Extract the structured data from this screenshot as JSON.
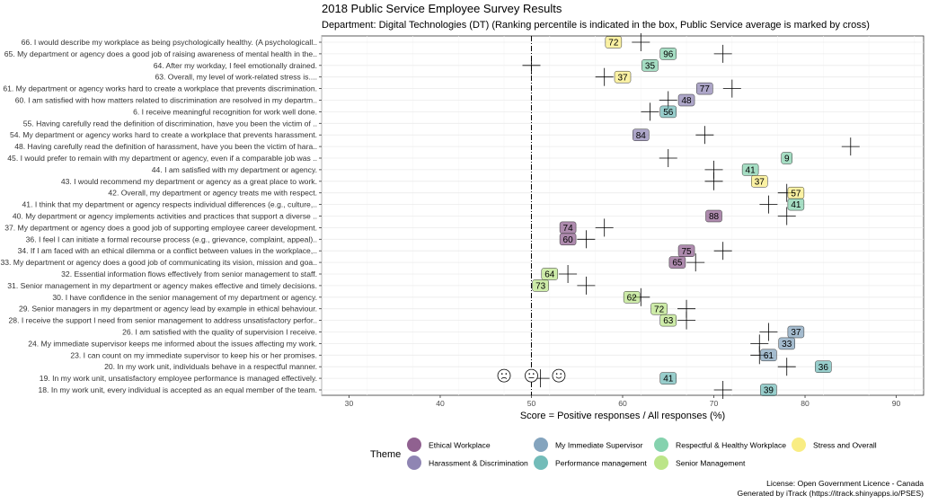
{
  "chart_data": {
    "type": "scatter",
    "title": "2018 Public Service Employee Survey Results",
    "subtitle": "Department: Digital Technologies (DT) (Ranking percentile is indicated in the box, Public Service average is marked by cross)",
    "xlabel": "Score = Positive responses / All responses (%)",
    "xlim": [
      27,
      93
    ],
    "xticks": [
      30,
      40,
      50,
      60,
      70,
      80,
      90
    ],
    "reference_line_x": 50,
    "grid": true,
    "legend_title": "Theme",
    "legend_position": "bottom",
    "themes": [
      {
        "name": "Ethical Workplace",
        "color": "#6b2c6b"
      },
      {
        "name": "Harassment & Discrimination",
        "color": "#6a5c9a"
      },
      {
        "name": "My Immediate Supervisor",
        "color": "#5b85a8"
      },
      {
        "name": "Performance management",
        "color": "#44a6a2"
      },
      {
        "name": "Respectful & Healthy Workplace",
        "color": "#5cc393"
      },
      {
        "name": "Senior Management",
        "color": "#a6dc62"
      },
      {
        "name": "Stress and Overall",
        "color": "#f7e75a"
      }
    ],
    "questions": [
      {
        "label": "66. I would describe my workplace as being psychologically healthy.   (A psychologicall..",
        "score": 59,
        "rank": "72",
        "ps_avg": 62,
        "theme": 6
      },
      {
        "label": "65. My department or agency does a good job of raising awareness of mental health in the..",
        "score": 65,
        "rank": "96",
        "ps_avg": 71,
        "theme": 4
      },
      {
        "label": "64. After my workday, I feel emotionally drained.",
        "score": 63,
        "rank": "35",
        "ps_avg": 50,
        "theme": 4
      },
      {
        "label": "63. Overall, my level of work-related stress is....",
        "score": 60,
        "rank": "37",
        "ps_avg": 58,
        "theme": 6
      },
      {
        "label": "61. My department or agency works hard to create a workplace that prevents discrimination.",
        "score": 69,
        "rank": "77",
        "ps_avg": 72,
        "theme": 1
      },
      {
        "label": "60. I am satisfied with how matters related to discrimination are resolved in my departm..",
        "score": 67,
        "rank": "48",
        "ps_avg": 65,
        "theme": 1
      },
      {
        "label": "6. I receive meaningful recognition for work well done.",
        "score": 65,
        "rank": "56",
        "ps_avg": 63,
        "theme": 3
      },
      {
        "label": "55. Having carefully read the definition of discrimination, have you been the victim of ..",
        "score": null,
        "rank": "",
        "ps_avg": null,
        "theme": 1
      },
      {
        "label": "54. My department or agency works hard to create a workplace that prevents harassment.",
        "score": 62,
        "rank": "84",
        "ps_avg": 69,
        "theme": 1
      },
      {
        "label": "48. Having carefully read the definition of harassment, have you been the victim of hara..",
        "score": null,
        "rank": "",
        "ps_avg": 85,
        "theme": 1
      },
      {
        "label": "45. I would prefer to remain with my department or agency, even if a comparable job was ..",
        "score": 78,
        "rank": "9",
        "ps_avg": 65,
        "theme": 4
      },
      {
        "label": "44. I am satisfied with my department or agency.",
        "score": 74,
        "rank": "41",
        "ps_avg": 70,
        "theme": 4
      },
      {
        "label": "43. I would recommend my department or agency as a great place to work.",
        "score": 75,
        "rank": "37",
        "ps_avg": 70,
        "theme": 6
      },
      {
        "label": "42. Overall, my department or agency treats me with respect.",
        "score": 79,
        "rank": "57",
        "ps_avg": 78,
        "theme": 6
      },
      {
        "label": "41. I think that my department or agency respects individual differences (e.g., culture,..",
        "score": 79,
        "rank": "41",
        "ps_avg": 76,
        "theme": 4
      },
      {
        "label": "40. My department or agency implements activities and practices  that support a diverse ..",
        "score": 70,
        "rank": "88",
        "ps_avg": 78,
        "theme": 0
      },
      {
        "label": "37. My department or agency does a good job of supporting employee career development.",
        "score": 54,
        "rank": "74",
        "ps_avg": 58,
        "theme": 0
      },
      {
        "label": "36. I feel I can initiate a formal recourse process (e.g., grievance, complaint, appeal)..",
        "score": 54,
        "rank": "60",
        "ps_avg": 56,
        "theme": 0
      },
      {
        "label": "34. If I am faced with an ethical dilemma or a conflict between values in the workplace,..",
        "score": 67,
        "rank": "75",
        "ps_avg": 71,
        "theme": 0
      },
      {
        "label": "33. My department or agency does a good job of communicating its vision, mission and goa..",
        "score": 66,
        "rank": "65",
        "ps_avg": 68,
        "theme": 0
      },
      {
        "label": "32. Essential information flows effectively from senior management to staff.",
        "score": 52,
        "rank": "64",
        "ps_avg": 54,
        "theme": 5
      },
      {
        "label": "31. Senior management in my department or agency makes effective and timely decisions.",
        "score": 51,
        "rank": "73",
        "ps_avg": 56,
        "theme": 5
      },
      {
        "label": "30. I have confidence in the senior management of my department or agency.",
        "score": 61,
        "rank": "62",
        "ps_avg": 62,
        "theme": 5
      },
      {
        "label": "29. Senior managers in my department or agency lead by example in ethical behaviour.",
        "score": 64,
        "rank": "72",
        "ps_avg": 67,
        "theme": 5
      },
      {
        "label": "28. I receive the support I need from senior management to address unsatisfactory perfor..",
        "score": 65,
        "rank": "63",
        "ps_avg": 67,
        "theme": 5
      },
      {
        "label": "26. I am satisfied with the quality of supervision I receive.",
        "score": 79,
        "rank": "37",
        "ps_avg": 76,
        "theme": 2
      },
      {
        "label": "24. My immediate supervisor keeps me informed about the issues affecting my work.",
        "score": 78,
        "rank": "33",
        "ps_avg": 75,
        "theme": 2
      },
      {
        "label": "23. I can count on my immediate supervisor to keep his or her promises.",
        "score": 76,
        "rank": "61",
        "ps_avg": 75,
        "theme": 2
      },
      {
        "label": "20. In my work unit, individuals behave in a respectful manner.",
        "score": 82,
        "rank": "36",
        "ps_avg": 78,
        "theme": 3
      },
      {
        "label": "19. In my work unit, unsatisfactory employee performance is managed effectively.",
        "score": 65,
        "rank": "41",
        "ps_avg": 51,
        "theme": 3
      },
      {
        "label": "18. In my work unit, every individual is accepted as an equal member of the team.",
        "score": 76,
        "rank": "39",
        "ps_avg": 71,
        "theme": 3
      }
    ],
    "faces_x": [
      47,
      50,
      53
    ],
    "faces": [
      "sad",
      "neutral",
      "happy"
    ]
  },
  "caption_license": "License: Open Government Licence - Canada",
  "caption_generated": "Generated by iTrack (https://itrack.shinyapps.io/PSES)"
}
